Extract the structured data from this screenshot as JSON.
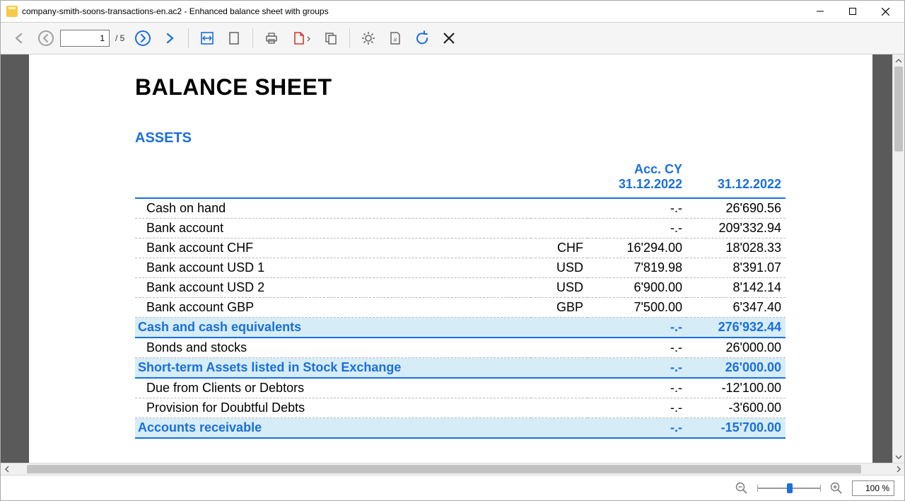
{
  "window": {
    "title": "company-smith-soons-transactions-en.ac2 - Enhanced balance sheet with groups"
  },
  "toolbar": {
    "page_current": "1",
    "page_total": "/ 5"
  },
  "document": {
    "title": "BALANCE SHEET",
    "section": "ASSETS",
    "headers": {
      "acc_cy_line1": "Acc. CY",
      "acc_cy_line2": "31.12.2022",
      "date": "31.12.2022"
    },
    "rows": [
      {
        "type": "item",
        "name": "Cash on hand",
        "currency": "",
        "acc": "-.-",
        "val": "26'690.56"
      },
      {
        "type": "item",
        "name": "Bank account",
        "currency": "",
        "acc": "-.-",
        "val": "209'332.94"
      },
      {
        "type": "item",
        "name": "Bank account CHF",
        "currency": "CHF",
        "acc": "16'294.00",
        "val": "18'028.33"
      },
      {
        "type": "item",
        "name": "Bank account USD 1",
        "currency": "USD",
        "acc": "7'819.98",
        "val": "8'391.07"
      },
      {
        "type": "item",
        "name": "Bank account USD 2",
        "currency": "USD",
        "acc": "6'900.00",
        "val": "8'142.14"
      },
      {
        "type": "item",
        "name": "Bank account GBP",
        "currency": "GBP",
        "acc": "7'500.00",
        "val": "6'347.40"
      },
      {
        "type": "group",
        "name": "Cash and cash equivalents",
        "currency": "",
        "acc": "-.-",
        "val": "276'932.44"
      },
      {
        "type": "item",
        "name": "Bonds and stocks",
        "currency": "",
        "acc": "-.-",
        "val": "26'000.00"
      },
      {
        "type": "group",
        "name": "Short-term Assets listed in Stock Exchange",
        "currency": "",
        "acc": "-.-",
        "val": "26'000.00"
      },
      {
        "type": "item",
        "name": "Due from Clients or Debtors",
        "currency": "",
        "acc": "-.-",
        "val": "-12'100.00"
      },
      {
        "type": "item",
        "name": "Provision for Doubtful Debts",
        "currency": "",
        "acc": "-.-",
        "val": "-3'600.00"
      },
      {
        "type": "group",
        "name": "Accounts receivable",
        "currency": "",
        "acc": "-.-",
        "val": "-15'700.00"
      }
    ]
  },
  "status": {
    "zoom": "100 %"
  },
  "colors": {
    "accent": "#1a6fdc",
    "group_bg": "#d6ecf7",
    "shadow": "#5a5a5a"
  }
}
